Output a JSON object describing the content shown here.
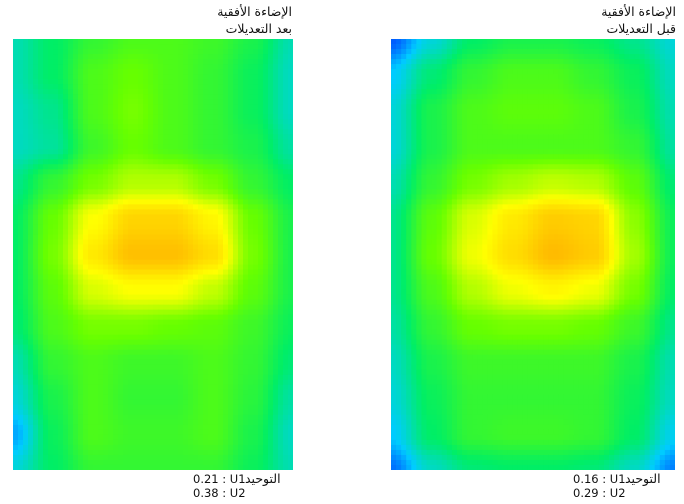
{
  "chart_data": [
    {
      "type": "heatmap",
      "title_line1": "الإضاءة الأفقية",
      "title_line2": "بعد التعديلات",
      "stats_label": "التوحيد",
      "stats": [
        "0.21 : U1",
        "0.38 : U2"
      ],
      "colorscale": [
        "#0033ff",
        "#00ccff",
        "#00ee66",
        "#66ff00",
        "#ffff00",
        "#ffaa00"
      ],
      "grid": [
        [
          0.3,
          0.4,
          0.5,
          0.55,
          0.55,
          0.52,
          0.45,
          0.3
        ],
        [
          0.3,
          0.4,
          0.55,
          0.6,
          0.55,
          0.5,
          0.42,
          0.28
        ],
        [
          0.28,
          0.35,
          0.55,
          0.62,
          0.55,
          0.5,
          0.42,
          0.28
        ],
        [
          0.28,
          0.33,
          0.52,
          0.6,
          0.55,
          0.5,
          0.45,
          0.32
        ],
        [
          0.35,
          0.5,
          0.62,
          0.7,
          0.7,
          0.62,
          0.5,
          0.4
        ],
        [
          0.4,
          0.6,
          0.8,
          0.9,
          0.9,
          0.82,
          0.6,
          0.45
        ],
        [
          0.4,
          0.62,
          0.85,
          0.95,
          0.95,
          0.88,
          0.62,
          0.45
        ],
        [
          0.4,
          0.58,
          0.75,
          0.8,
          0.8,
          0.72,
          0.58,
          0.45
        ],
        [
          0.38,
          0.55,
          0.62,
          0.62,
          0.6,
          0.58,
          0.52,
          0.42
        ],
        [
          0.3,
          0.5,
          0.55,
          0.52,
          0.52,
          0.55,
          0.5,
          0.38
        ],
        [
          0.25,
          0.45,
          0.55,
          0.5,
          0.5,
          0.55,
          0.48,
          0.32
        ],
        [
          0.15,
          0.42,
          0.55,
          0.52,
          0.52,
          0.55,
          0.45,
          0.28
        ],
        [
          0.25,
          0.4,
          0.5,
          0.5,
          0.5,
          0.5,
          0.42,
          0.3
        ]
      ]
    },
    {
      "type": "heatmap",
      "title_line1": "الإضاءة الأفقية",
      "title_line2": "قبل التعديلات",
      "stats_label": "التوحيد",
      "stats": [
        "0.16 : U1",
        "0.29 : U2"
      ],
      "colorscale": [
        "#0033ff",
        "#00ccff",
        "#00ee66",
        "#66ff00",
        "#ffff00",
        "#ffaa00"
      ],
      "grid": [
        [
          0.05,
          0.25,
          0.4,
          0.45,
          0.45,
          0.42,
          0.35,
          0.25
        ],
        [
          0.2,
          0.38,
          0.5,
          0.55,
          0.55,
          0.5,
          0.42,
          0.28
        ],
        [
          0.25,
          0.45,
          0.55,
          0.58,
          0.58,
          0.55,
          0.45,
          0.3
        ],
        [
          0.25,
          0.45,
          0.55,
          0.55,
          0.55,
          0.55,
          0.5,
          0.32
        ],
        [
          0.3,
          0.5,
          0.62,
          0.68,
          0.72,
          0.7,
          0.58,
          0.38
        ],
        [
          0.35,
          0.58,
          0.75,
          0.85,
          0.92,
          0.9,
          0.65,
          0.42
        ],
        [
          0.35,
          0.6,
          0.78,
          0.88,
          0.96,
          0.92,
          0.68,
          0.42
        ],
        [
          0.35,
          0.55,
          0.7,
          0.78,
          0.82,
          0.78,
          0.62,
          0.4
        ],
        [
          0.32,
          0.5,
          0.6,
          0.62,
          0.62,
          0.6,
          0.52,
          0.35
        ],
        [
          0.28,
          0.45,
          0.52,
          0.52,
          0.52,
          0.52,
          0.45,
          0.3
        ],
        [
          0.25,
          0.42,
          0.5,
          0.5,
          0.5,
          0.5,
          0.42,
          0.28
        ],
        [
          0.2,
          0.4,
          0.5,
          0.52,
          0.52,
          0.5,
          0.4,
          0.22
        ],
        [
          0.08,
          0.28,
          0.38,
          0.4,
          0.4,
          0.38,
          0.28,
          0.1
        ]
      ]
    }
  ]
}
